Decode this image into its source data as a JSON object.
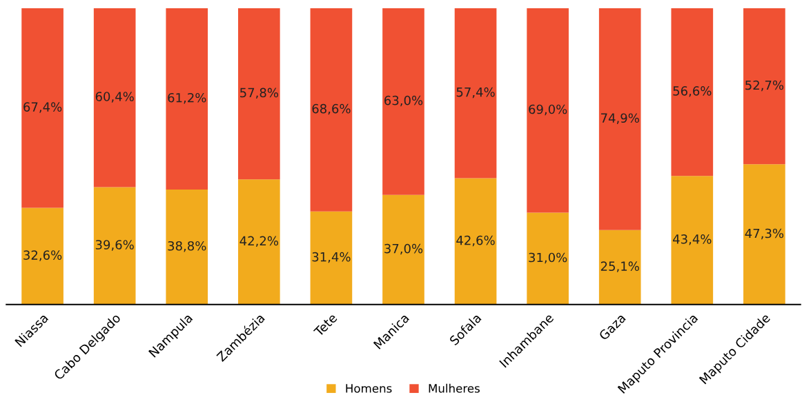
{
  "chart_data": {
    "type": "bar",
    "stacked": true,
    "categories": [
      "Niassa",
      "Cabo Delgado",
      "Nampula",
      "Zambézia",
      "Tete",
      "Manica",
      "Sofala",
      "Inhambane",
      "Gaza",
      "Maputo Provincia",
      "Maputo Cidade"
    ],
    "series": [
      {
        "name": "Homens",
        "color": "#f2ab1d",
        "values": [
          32.6,
          39.6,
          38.8,
          42.2,
          31.4,
          37.0,
          42.6,
          31.0,
          25.1,
          43.4,
          47.3
        ],
        "value_labels": [
          "32,6%",
          "39,6%",
          "38,8%",
          "42,2%",
          "31,4%",
          "37,0%",
          "42,6%",
          "31,0%",
          "25,1%",
          "43,4%",
          "47,3%"
        ]
      },
      {
        "name": "Mulheres",
        "color": "#f05133",
        "values": [
          67.4,
          60.4,
          61.2,
          57.8,
          68.6,
          63.0,
          57.4,
          69.0,
          74.9,
          56.6,
          52.7
        ],
        "value_labels": [
          "67,4%",
          "60,4%",
          "61,2%",
          "57,8%",
          "68,6%",
          "63,0%",
          "57,4%",
          "69,0%",
          "74,9%",
          "56,6%",
          "52,7%"
        ]
      }
    ],
    "legend": "bottom",
    "grid": false
  }
}
